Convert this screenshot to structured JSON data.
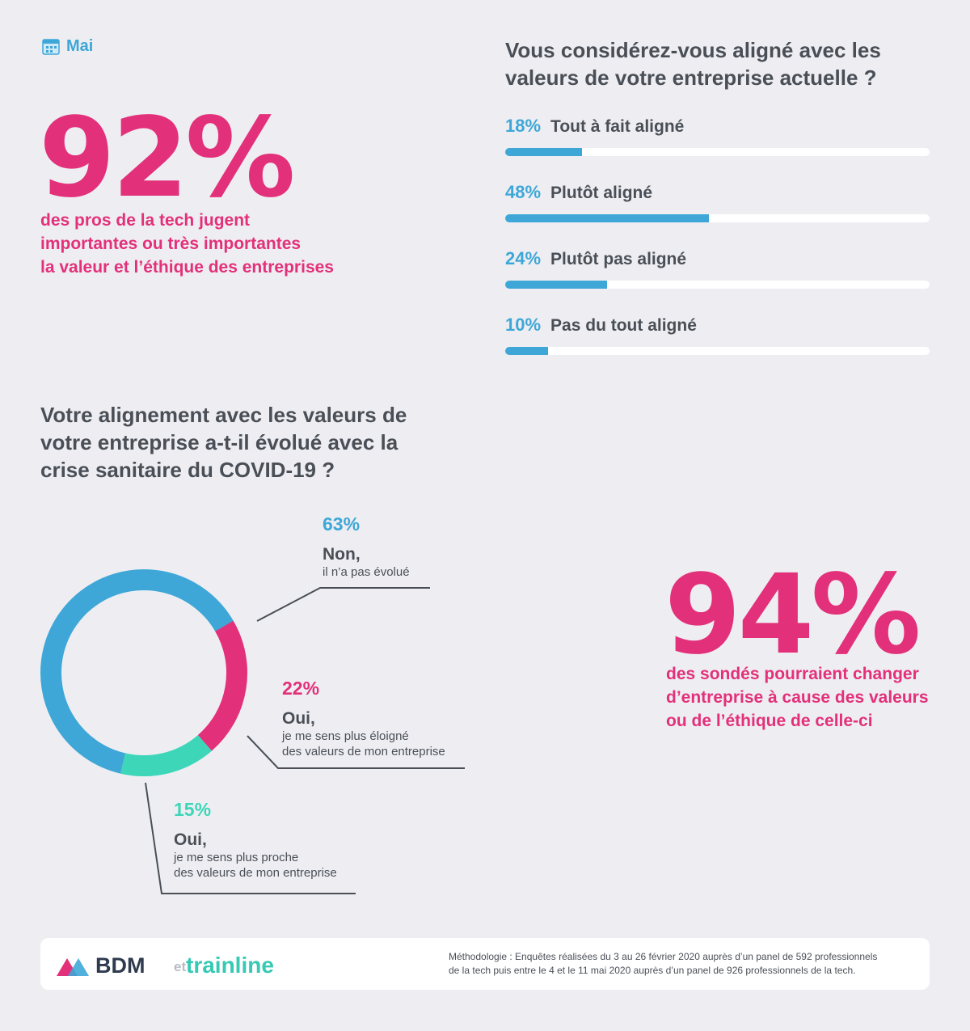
{
  "month": {
    "label": "Mai",
    "icon": "calendar-icon"
  },
  "stat_left": {
    "value": "92%",
    "lines": [
      "des pros de la tech jugent",
      "importantes ou très importantes",
      "la valeur et l’éthique des entreprises"
    ]
  },
  "stat_right": {
    "value": "94%",
    "lines": [
      "des sondés pourraient changer",
      "d’entreprise à cause des valeurs",
      "ou de l’éthique de celle-ci"
    ]
  },
  "colors": {
    "blue": "#3ea7d8",
    "pink": "#e3307a",
    "teal": "#3dd6b9",
    "text": "#4a4f57",
    "background": "#eeeef2"
  },
  "chart_data": [
    {
      "type": "bar",
      "title": "Vous considérez-vous aligné avec les valeurs de votre entreprise actuelle ?",
      "categories": [
        "Tout à fait aligné",
        "Plutôt aligné",
        "Plutôt pas aligné",
        "Pas du tout aligné"
      ],
      "values": [
        18,
        48,
        24,
        10
      ],
      "value_labels": [
        "18%",
        "48%",
        "24%",
        "10%"
      ],
      "orientation": "horizontal",
      "ylim": [
        0,
        100
      ]
    },
    {
      "type": "pie",
      "title": "Votre alignement avec les valeurs de votre entreprise a-t-il évolué avec la crise sanitaire du COVID-19 ?",
      "donut": true,
      "slices": [
        {
          "value": 63,
          "pct_label": "63%",
          "label": "Non,",
          "sublabel": [
            "il n’a pas évolué"
          ],
          "color": "#3ea7d8"
        },
        {
          "value": 22,
          "pct_label": "22%",
          "label": "Oui,",
          "sublabel": [
            "je me sens plus éloigné",
            "des valeurs de mon entreprise"
          ],
          "color": "#e3307a"
        },
        {
          "value": 15,
          "pct_label": "15%",
          "label": "Oui,",
          "sublabel": [
            "je me sens plus proche",
            "des valeurs de mon entreprise"
          ],
          "color": "#3dd6b9"
        }
      ]
    }
  ],
  "footer": {
    "brand1": "BDM",
    "connector": "et",
    "brand2": "trainline",
    "methodology": [
      "Méthodologie : Enquêtes réalisées du 3 au 26 février 2020 auprès d’un panel de 592 professionnels",
      "de la tech puis entre le 4 et le 11 mai 2020 auprès d’un panel de 926 professionnels de la tech."
    ]
  }
}
